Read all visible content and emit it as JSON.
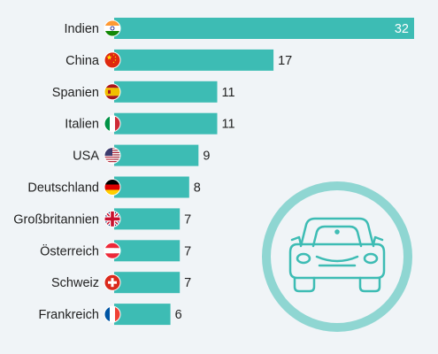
{
  "colors": {
    "bar": "#3dbcb4",
    "text": "#222222",
    "inside_value": "#ffffff",
    "icon_ring": "#8fd6d2",
    "icon_stroke": "#3dbcb4",
    "background": "#f0f4f7"
  },
  "decoration": {
    "icon": "car-icon"
  },
  "chart_data": {
    "type": "bar",
    "orientation": "horizontal",
    "title": "",
    "xlabel": "",
    "ylabel": "",
    "xlim": [
      0,
      32
    ],
    "grid": false,
    "legend": "none",
    "categories": [
      "Indien",
      "China",
      "Spanien",
      "Italien",
      "USA",
      "Deutschland",
      "Großbritannien",
      "Österreich",
      "Schweiz",
      "Frankreich"
    ],
    "flags": [
      "flag-india-icon",
      "flag-china-icon",
      "flag-spain-icon",
      "flag-italy-icon",
      "flag-usa-icon",
      "flag-germany-icon",
      "flag-uk-icon",
      "flag-austria-icon",
      "flag-switzerland-icon",
      "flag-france-icon"
    ],
    "values": [
      32,
      17,
      11,
      11,
      9,
      8,
      7,
      7,
      7,
      6
    ],
    "value_labels": [
      "32",
      "17",
      "11",
      "11",
      "9",
      "8",
      "7",
      "7",
      "7",
      "6"
    ]
  }
}
